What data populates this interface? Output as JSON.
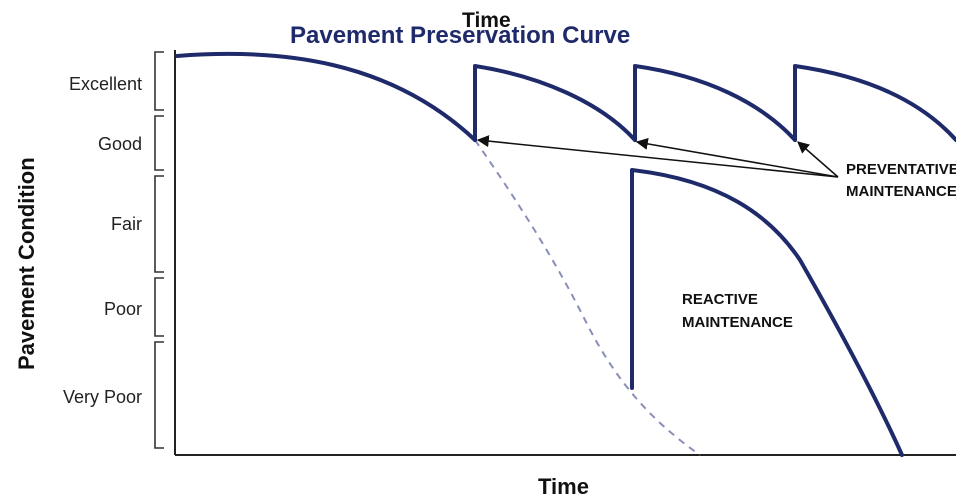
{
  "title": "Pavement Preservation Curve",
  "top_clipped_label": "Time",
  "y_axis_title": "Pavement Condition",
  "x_axis_title": "Time",
  "condition_levels": [
    "Excellent",
    "Good",
    "Fair",
    "Poor",
    "Very Poor"
  ],
  "annotations": {
    "preventative": [
      "PREVENTATIVE",
      "MAINTENANCE"
    ],
    "reactive": [
      "REACTIVE",
      "MAINTENANCE"
    ]
  },
  "colors": {
    "curve": "#1f2a6b",
    "dashed_curve": "#8a8fb8",
    "title": "#1f2a6b"
  }
}
